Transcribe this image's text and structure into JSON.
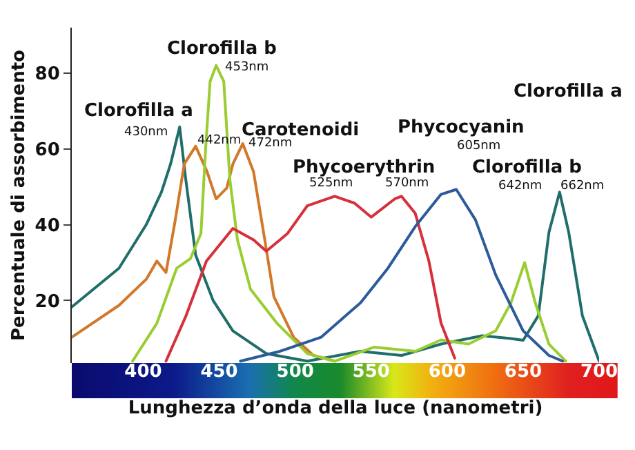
{
  "chart_data": {
    "type": "line",
    "xlabel": "Lunghezza d’onda della luce (nanometri)",
    "ylabel": "Percentuale di assorbimento",
    "xlim": [
      353,
      700
    ],
    "ylim": [
      3.5,
      92
    ],
    "xticks": [
      400,
      450,
      500,
      550,
      600,
      650,
      700
    ],
    "yticks": [
      20,
      40,
      60,
      80
    ],
    "series": [
      {
        "color": "#1f6e6a",
        "x": [
          353,
          384,
          402,
          412,
          418,
          424,
          428,
          434.5,
          446,
          459,
          481,
          508,
          543,
          570,
          596,
          623,
          641,
          650,
          660,
          667,
          674,
          680,
          689,
          700
        ],
        "values": [
          18.3,
          28.5,
          40,
          48.6,
          56,
          65.8,
          52,
          32,
          20,
          12,
          6,
          4,
          6.6,
          5.5,
          8.5,
          10.7,
          10,
          9.5,
          16,
          38,
          48.6,
          38,
          16,
          4
        ]
      },
      {
        "color": "#d2782a",
        "x": [
          353,
          384,
          402,
          409,
          415,
          421,
          427,
          434.5,
          442,
          448,
          455,
          459,
          465.5,
          472.6,
          480,
          486,
          499,
          512,
          526
        ],
        "values": [
          10.3,
          18.7,
          25.6,
          30.4,
          27.4,
          41,
          56,
          60.7,
          54,
          46.8,
          49.7,
          56,
          61.4,
          54,
          36,
          21,
          10.3,
          5.5,
          4
        ]
      },
      {
        "color": "#9acd32",
        "x": [
          393,
          409,
          422,
          431,
          438,
          441,
          444,
          448,
          453,
          457,
          462,
          470.6,
          488,
          508,
          526,
          552,
          579,
          596,
          614,
          632,
          642,
          651,
          658,
          667,
          678
        ],
        "values": [
          4,
          14,
          28.5,
          31,
          37.7,
          59.6,
          77.8,
          82,
          77.8,
          52,
          36,
          23,
          14,
          6,
          4,
          7.7,
          6.6,
          9.6,
          8.5,
          12,
          19.4,
          30,
          19.4,
          8.5,
          4
        ]
      },
      {
        "color": "#d6303a",
        "x": [
          415,
          428,
          441.6,
          459,
          472.6,
          481,
          495,
          508,
          526,
          539,
          550,
          565.5,
          570,
          579,
          588,
          596,
          605
        ],
        "values": [
          4,
          15.8,
          30.4,
          39,
          36,
          33,
          37.7,
          45,
          47.5,
          45.7,
          42,
          46.8,
          47.5,
          43,
          30.4,
          14,
          4.8
        ]
      },
      {
        "color": "#2d5a9a",
        "x": [
          464,
          490,
          517,
          543,
          561,
          579,
          596,
          606,
          618.6,
          632,
          650,
          667,
          676
        ],
        "values": [
          4,
          6.6,
          10.3,
          19.4,
          28.5,
          39.5,
          48,
          49.3,
          41.3,
          26.7,
          12,
          5.5,
          4
        ]
      }
    ],
    "annotations": [
      "Clorofilla a",
      "Clorofilla b",
      "Carotenoidi",
      "Phycoerythrin",
      "Phycocyanin",
      "Clorofilla b",
      "Clorofilla a",
      "430nm",
      "453nm",
      "442nm",
      "472nm",
      "525nm",
      "570nm",
      "605nm",
      "642nm",
      "662nm"
    ]
  }
}
